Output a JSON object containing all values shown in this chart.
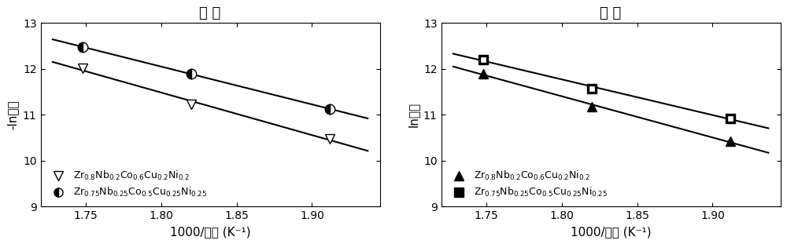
{
  "left_title": "吸 氢",
  "right_title": "放 氢",
  "xlabel": "1000/温度 (K⁻¹)",
  "left_ylabel": "-ln压力",
  "right_ylabel": "ln压力",
  "xlim": [
    1.72,
    1.945
  ],
  "ylim": [
    9,
    13
  ],
  "xticks": [
    1.75,
    1.8,
    1.85,
    1.9
  ],
  "yticks": [
    9,
    10,
    11,
    12,
    13
  ],
  "left_series1_x": [
    1.748,
    1.82,
    1.912
  ],
  "left_series1_y": [
    12.01,
    11.22,
    10.48
  ],
  "left_series1_label": "Zr$_{0.8}$Nb$_{0.2}$Co$_{0.6}$Cu$_{0.2}$Ni$_{0.2}$",
  "left_series2_x": [
    1.748,
    1.82,
    1.912
  ],
  "left_series2_y": [
    12.47,
    11.9,
    11.12
  ],
  "left_series2_label": "Zr$_{0.75}$Nb$_{0.25}$Co$_{0.5}$Cu$_{0.25}$Ni$_{0.25}$",
  "right_series1_x": [
    1.748,
    1.82,
    1.912
  ],
  "right_series1_y": [
    11.9,
    11.17,
    10.42
  ],
  "right_series1_label": "Zr$_{0.8}$Nb$_{0.2}$Co$_{0.6}$Cu$_{0.2}$Ni$_{0.2}$",
  "right_series2_x": [
    1.748,
    1.82,
    1.912
  ],
  "right_series2_y": [
    12.2,
    11.57,
    10.92
  ],
  "right_series2_label": "Zr$_{0.75}$Nb$_{0.25}$Co$_{0.5}$Cu$_{0.25}$Ni$_{0.25}$",
  "line_color": "#000000",
  "bg_color": "#ffffff",
  "title_fontsize": 13,
  "label_fontsize": 11,
  "tick_fontsize": 10,
  "legend_fontsize": 9
}
